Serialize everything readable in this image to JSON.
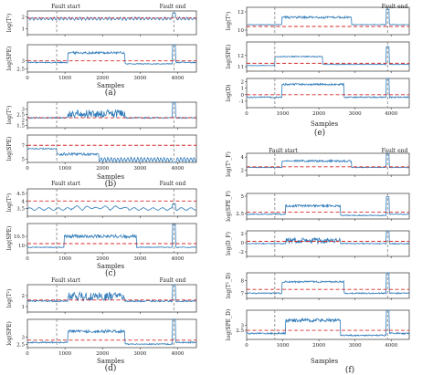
{
  "figure": {
    "panel_labels": [
      "(a)",
      "(b)",
      "(c)",
      "(d)",
      "(e)",
      "(f)"
    ],
    "fault_start_label": "Fault start",
    "fault_end_label": "Fault end",
    "xlabel": "Samples",
    "x_ticks": [
      0,
      1000,
      2000,
      3000,
      4000
    ],
    "colors": {
      "signal": "#2f7ab9",
      "threshold": "#d62728",
      "fault_line": "#7f7f7f"
    }
  },
  "chart_data": [
    {
      "panel": "a",
      "ylabel": "log(T²)",
      "type": "line",
      "xlim": [
        0,
        4500
      ],
      "ylim": [
        0.5,
        2.5
      ],
      "yticks": [
        1,
        2
      ],
      "threshold": 1.9,
      "fault_start": 780,
      "fault_end": 3900,
      "series": [
        {
          "pattern": "oscill",
          "x": [
            0,
            4500
          ],
          "y": [
            1.7,
            2.0
          ]
        }
      ]
    },
    {
      "panel": "a",
      "ylabel": "log(SPE)",
      "type": "line",
      "xlim": [
        0,
        4500
      ],
      "ylim": [
        2.3,
        4.0
      ],
      "yticks": [
        2.5,
        3.0
      ],
      "threshold": 3.0,
      "fault_start": 780,
      "fault_end": 3900,
      "series": [
        {
          "pattern": "step",
          "x": [
            0,
            4500
          ],
          "y": [
            2.9,
            3.5
          ]
        }
      ]
    },
    {
      "panel": "b",
      "ylabel": "log(T²)",
      "type": "line",
      "xlim": [
        0,
        4500
      ],
      "ylim": [
        1.3,
        3.6
      ],
      "yticks": [
        1.5,
        2.0,
        2.5,
        3.0
      ],
      "threshold": 2.2,
      "fault_start": 780,
      "fault_end": 3900,
      "series": [
        {
          "pattern": "burst",
          "x": [
            0,
            4500
          ],
          "y": [
            2.2,
            3.0
          ]
        }
      ]
    },
    {
      "panel": "b",
      "ylabel": "log(SPE)",
      "type": "line",
      "xlim": [
        0,
        4500
      ],
      "ylim": [
        4.5,
        8.5
      ],
      "yticks": [
        5,
        7
      ],
      "threshold": 7.0,
      "fault_start": 780,
      "fault_end": 3900,
      "series": [
        {
          "pattern": "drop",
          "x": [
            0,
            4500
          ],
          "y": [
            6.5,
            4.9
          ]
        }
      ]
    },
    {
      "panel": "c",
      "ylabel": "log(T²)",
      "type": "line",
      "xlim": [
        0,
        4500
      ],
      "ylim": [
        3.0,
        4.8
      ],
      "yticks": [
        3.5,
        4.0,
        4.5
      ],
      "threshold": 4.0,
      "fault_start": 780,
      "fault_end": 3900,
      "series": [
        {
          "pattern": "wave",
          "x": [
            0,
            4500
          ],
          "y": [
            3.4,
            3.6
          ]
        }
      ]
    },
    {
      "panel": "c",
      "ylabel": "log(SPE)",
      "type": "line",
      "xlim": [
        0,
        4500
      ],
      "ylim": [
        9.6,
        11.2
      ],
      "yticks": [
        10.0,
        10.5
      ],
      "threshold": 10.1,
      "fault_start": 780,
      "fault_end": 3900,
      "series": [
        {
          "pattern": "plateau",
          "x": [
            0,
            4500
          ],
          "y": [
            9.9,
            10.5
          ]
        }
      ]
    },
    {
      "panel": "d",
      "ylabel": "log(T²)",
      "type": "line",
      "xlim": [
        0,
        4500
      ],
      "ylim": [
        0.5,
        3.0
      ],
      "yticks": [
        1,
        2
      ],
      "threshold": 1.6,
      "fault_start": 780,
      "fault_end": 3900,
      "series": [
        {
          "pattern": "burst",
          "x": [
            0,
            4500
          ],
          "y": [
            1.5,
            2.4
          ]
        }
      ]
    },
    {
      "panel": "d",
      "ylabel": "log(SPE)",
      "type": "line",
      "xlim": [
        0,
        4500
      ],
      "ylim": [
        2.3,
        4.2
      ],
      "yticks": [
        2.5,
        3.0
      ],
      "threshold": 2.8,
      "fault_start": 780,
      "fault_end": 3900,
      "series": [
        {
          "pattern": "step",
          "x": [
            0,
            4500
          ],
          "y": [
            2.65,
            3.4
          ]
        }
      ]
    },
    {
      "panel": "e",
      "ylabel": "log(T²)",
      "type": "line",
      "xlim": [
        0,
        4500
      ],
      "ylim": [
        9.5,
        12.5
      ],
      "yticks": [
        10,
        12
      ],
      "threshold": 10.4,
      "fault_start": 780,
      "fault_end": 3900,
      "series": [
        {
          "pattern": "plateau",
          "x": [
            0,
            4500
          ],
          "y": [
            10.6,
            11.4
          ]
        }
      ]
    },
    {
      "panel": "e",
      "ylabel": "log(SPE)",
      "type": "line",
      "xlim": [
        0,
        4500
      ],
      "ylim": [
        10.6,
        13.2
      ],
      "yticks": [
        11,
        12
      ],
      "threshold": 11.3,
      "fault_start": 780,
      "fault_end": 3900,
      "series": [
        {
          "pattern": "stepdown",
          "x": [
            0,
            4500
          ],
          "y": [
            11.1,
            11.9
          ]
        }
      ]
    },
    {
      "panel": "e",
      "ylabel": "log(D)",
      "type": "line",
      "xlim": [
        0,
        4500
      ],
      "ylim": [
        -2.0,
        2.5
      ],
      "yticks": [
        -1,
        0,
        1,
        2
      ],
      "threshold": 0.0,
      "fault_start": 780,
      "fault_end": 3900,
      "series": [
        {
          "pattern": "hump",
          "x": [
            0,
            4500
          ],
          "y": [
            -0.4,
            1.6
          ]
        }
      ]
    },
    {
      "panel": "f",
      "ylabel": "log(T²_F)",
      "type": "line",
      "xlim": [
        0,
        4500
      ],
      "ylim": [
        1.2,
        4.6
      ],
      "yticks": [
        2,
        4
      ],
      "threshold": 2.5,
      "fault_start": 780,
      "fault_end": 3900,
      "series": [
        {
          "pattern": "plateau",
          "x": [
            0,
            4500
          ],
          "y": [
            2.4,
            3.4
          ]
        }
      ]
    },
    {
      "panel": "f",
      "ylabel": "log(SPE_F)",
      "type": "line",
      "xlim": [
        0,
        4500
      ],
      "ylim": [
        1.7,
        5.4
      ],
      "yticks": [
        2.5,
        5.0
      ],
      "threshold": 2.7,
      "fault_start": 780,
      "fault_end": 3900,
      "series": [
        {
          "pattern": "step",
          "x": [
            0,
            4500
          ],
          "y": [
            2.4,
            3.6
          ]
        }
      ]
    },
    {
      "panel": "f",
      "ylabel": "log(D_F)",
      "type": "line",
      "xlim": [
        0,
        4500
      ],
      "ylim": [
        -3.0,
        2.6
      ],
      "yticks": [
        -2,
        0,
        2
      ],
      "threshold": 0.3,
      "fault_start": 780,
      "fault_end": 3900,
      "series": [
        {
          "pattern": "burst",
          "x": [
            0,
            4500
          ],
          "y": [
            -0.2,
            1.2
          ]
        }
      ]
    },
    {
      "panel": "f",
      "ylabel": "log(T²_D)",
      "type": "line",
      "xlim": [
        0,
        4500
      ],
      "ylim": [
        6.6,
        8.6
      ],
      "yticks": [
        7,
        8
      ],
      "threshold": 7.3,
      "fault_start": 780,
      "fault_end": 3900,
      "series": [
        {
          "pattern": "hump",
          "x": [
            0,
            4500
          ],
          "y": [
            7.0,
            7.9
          ]
        }
      ]
    },
    {
      "panel": "f",
      "ylabel": "log(SPE_D)",
      "type": "line",
      "xlim": [
        0,
        4500
      ],
      "ylim": [
        1.6,
        4.5
      ],
      "yticks": [
        2.5,
        3.0
      ],
      "threshold": 2.5,
      "fault_start": 780,
      "fault_end": 3900,
      "series": [
        {
          "pattern": "step",
          "x": [
            0,
            4500
          ],
          "y": [
            2.2,
            3.5
          ]
        }
      ]
    }
  ]
}
